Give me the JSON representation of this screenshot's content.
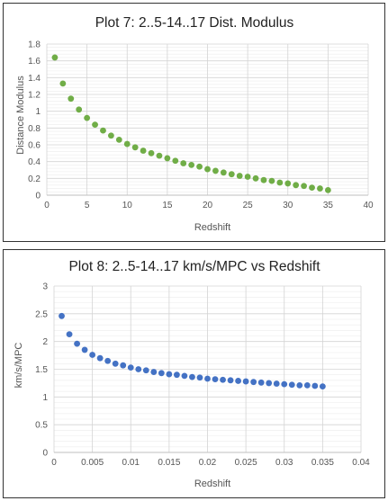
{
  "chart_data": [
    {
      "type": "scatter",
      "title": "Plot 7: 2..5-14..17 Dist. Modulus",
      "xlabel": "Redshift",
      "ylabel": "Distance Modulus",
      "xlim": [
        0,
        40
      ],
      "ylim": [
        0,
        1.8
      ],
      "xticks": [
        0,
        5,
        10,
        15,
        20,
        25,
        30,
        35,
        40
      ],
      "xtick_labels": [
        "0",
        "5",
        "10",
        "15",
        "20",
        "25",
        "30",
        "35",
        "40"
      ],
      "yticks": [
        0,
        0.2,
        0.4,
        0.6,
        0.8,
        1.0,
        1.2,
        1.4,
        1.6,
        1.8
      ],
      "ytick_labels": [
        "0",
        "0.2",
        "0.4",
        "0.6",
        "0.8",
        "1",
        "1.2",
        "1.4",
        "1.6",
        "1.8"
      ],
      "grid": true,
      "color": "#70ad47",
      "series": [
        {
          "x": [
            1,
            2,
            3,
            4,
            5,
            6,
            7,
            8,
            9,
            10,
            11,
            12,
            13,
            14,
            15,
            16,
            17,
            18,
            19,
            20,
            21,
            22,
            23,
            24,
            25,
            26,
            27,
            28,
            29,
            30,
            31,
            32,
            33,
            34,
            35
          ],
          "values": [
            1.64,
            1.33,
            1.15,
            1.02,
            0.92,
            0.84,
            0.77,
            0.71,
            0.66,
            0.61,
            0.57,
            0.53,
            0.5,
            0.47,
            0.44,
            0.41,
            0.38,
            0.36,
            0.34,
            0.31,
            0.29,
            0.27,
            0.25,
            0.23,
            0.22,
            0.2,
            0.18,
            0.17,
            0.15,
            0.14,
            0.12,
            0.11,
            0.09,
            0.08,
            0.06
          ]
        }
      ]
    },
    {
      "type": "scatter",
      "title": "Plot 8: 2..5-14..17 km/s/MPC vs Redshift",
      "xlabel": "Redshift",
      "ylabel": "km/s/MPC",
      "xlim": [
        0,
        0.04
      ],
      "ylim": [
        0,
        3
      ],
      "xticks": [
        0,
        0.005,
        0.01,
        0.015,
        0.02,
        0.025,
        0.03,
        0.035,
        0.04
      ],
      "xtick_labels": [
        "0",
        "0.005",
        "0.01",
        "0.015",
        "0.02",
        "0.025",
        "0.03",
        "0.035",
        "0.04"
      ],
      "yticks": [
        0,
        0.5,
        1,
        1.5,
        2,
        2.5,
        3
      ],
      "ytick_labels": [
        "0",
        "0.5",
        "1",
        "1.5",
        "2",
        "2.5",
        "3"
      ],
      "grid": true,
      "color": "#4472c4",
      "series": [
        {
          "x": [
            0.001,
            0.002,
            0.003,
            0.004,
            0.005,
            0.006,
            0.007,
            0.008,
            0.009,
            0.01,
            0.011,
            0.012,
            0.013,
            0.014,
            0.015,
            0.016,
            0.017,
            0.018,
            0.019,
            0.02,
            0.021,
            0.022,
            0.023,
            0.024,
            0.025,
            0.026,
            0.027,
            0.028,
            0.029,
            0.03,
            0.031,
            0.032,
            0.033,
            0.034,
            0.035
          ],
          "values": [
            2.46,
            2.13,
            1.96,
            1.85,
            1.76,
            1.7,
            1.65,
            1.6,
            1.57,
            1.53,
            1.5,
            1.48,
            1.45,
            1.43,
            1.41,
            1.4,
            1.38,
            1.36,
            1.35,
            1.33,
            1.32,
            1.31,
            1.3,
            1.29,
            1.28,
            1.27,
            1.26,
            1.25,
            1.24,
            1.23,
            1.22,
            1.21,
            1.21,
            1.2,
            1.19
          ]
        }
      ]
    }
  ]
}
